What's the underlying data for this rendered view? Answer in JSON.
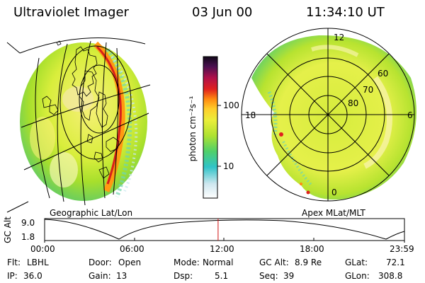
{
  "header": {
    "instrument": "Ultraviolet Imager",
    "date": "03 Jun 00",
    "time": "11:34:10 UT"
  },
  "left_panel": {
    "caption": "Geographic Lat/Lon"
  },
  "right_panel": {
    "caption": "Apex MLat/MLT",
    "mlt_labels": [
      "12",
      "18",
      "6",
      "0"
    ],
    "lat_labels": [
      "60",
      "70",
      "80"
    ]
  },
  "colorbar": {
    "units_label": "photon cm⁻²s⁻¹",
    "ticks": [
      "100",
      "10"
    ],
    "scale": "log"
  },
  "altitude_plot": {
    "ylabel": "GC Alt",
    "y_ticks": [
      "9.0",
      "1.8"
    ],
    "x_ticks": [
      "00:00",
      "06:00",
      "12:00",
      "18:00",
      "23:59"
    ],
    "current_time_marker_hours": 11.57,
    "marker_color": "#d01010"
  },
  "info": {
    "row1": [
      {
        "label": "Flt:",
        "value": "LBHL"
      },
      {
        "label": "Door:",
        "value": "Open"
      },
      {
        "label": "Mode:",
        "value": "Normal"
      },
      {
        "label": "GC Alt:",
        "value": "8.9 Re"
      },
      {
        "label": "GLat:",
        "value": "72.1"
      }
    ],
    "row2": [
      {
        "label": "IP:",
        "value": "36.0"
      },
      {
        "label": "Gain:",
        "value": "13"
      },
      {
        "label": "Dsp:",
        "value": "5.1"
      },
      {
        "label": "Seq:",
        "value": "39"
      },
      {
        "label": "GLon:",
        "value": "308.8"
      }
    ]
  }
}
